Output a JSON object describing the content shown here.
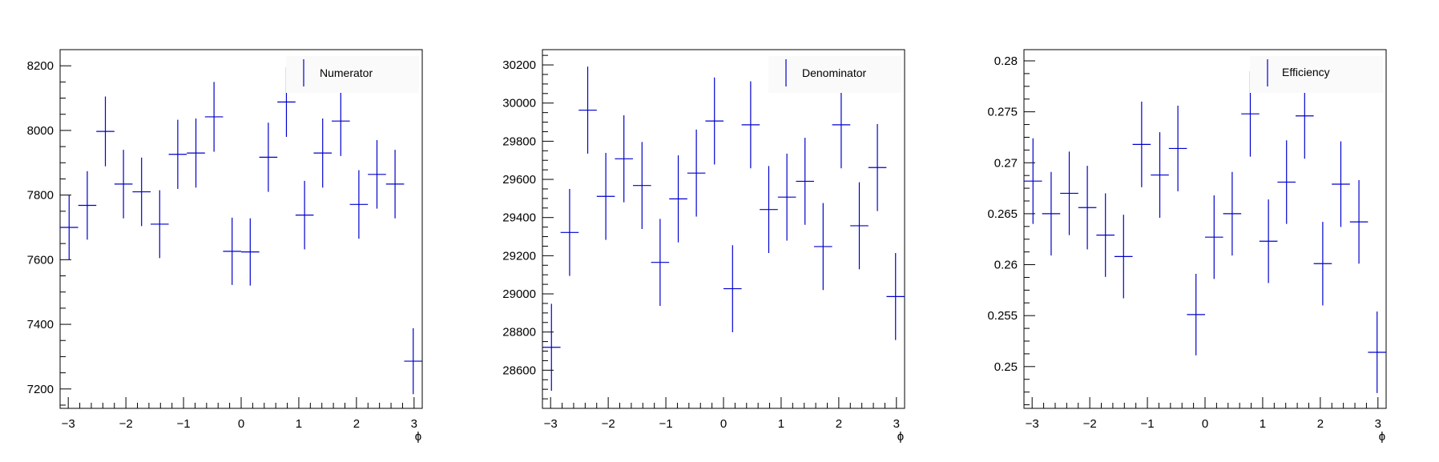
{
  "style": {
    "marker_color": "#0000cc",
    "axis_color": "#000000",
    "legend_bg": "#fafafa"
  },
  "chart_data": [
    {
      "type": "scatter",
      "title": "",
      "xlabel": "ϕ",
      "ylabel": "",
      "legend": "Numerator",
      "legend_position": "top-right",
      "grid": false,
      "xlim": [
        -3.1416,
        3.1416
      ],
      "ylim": [
        7140,
        8250
      ],
      "xticks": [
        -3,
        -2,
        -1,
        0,
        1,
        2,
        3
      ],
      "xtick_labels": [
        "−3",
        "−2",
        "−1",
        "0",
        "1",
        "2",
        "3"
      ],
      "yticks": [
        7200,
        7400,
        7600,
        7800,
        8000,
        8200
      ],
      "ytick_labels": [
        "7200",
        "7400",
        "7600",
        "7800",
        "8000",
        "8200"
      ],
      "bin_half_width": 0.157,
      "points": [
        {
          "x": -2.985,
          "y": 7700,
          "err": 100
        },
        {
          "x": -2.67,
          "y": 7768,
          "err": 106
        },
        {
          "x": -2.356,
          "y": 7997,
          "err": 108
        },
        {
          "x": -2.042,
          "y": 7834,
          "err": 106
        },
        {
          "x": -1.728,
          "y": 7810,
          "err": 106
        },
        {
          "x": -1.414,
          "y": 7710,
          "err": 105
        },
        {
          "x": -1.1,
          "y": 7926,
          "err": 107
        },
        {
          "x": -0.785,
          "y": 7930,
          "err": 107
        },
        {
          "x": -0.471,
          "y": 8042,
          "err": 108
        },
        {
          "x": -0.157,
          "y": 7626,
          "err": 104
        },
        {
          "x": 0.157,
          "y": 7624,
          "err": 104
        },
        {
          "x": 0.471,
          "y": 7917,
          "err": 107
        },
        {
          "x": 0.785,
          "y": 8088,
          "err": 108
        },
        {
          "x": 1.1,
          "y": 7738,
          "err": 106
        },
        {
          "x": 1.414,
          "y": 7930,
          "err": 107
        },
        {
          "x": 1.728,
          "y": 8029,
          "err": 108
        },
        {
          "x": 2.042,
          "y": 7771,
          "err": 106
        },
        {
          "x": 2.356,
          "y": 7864,
          "err": 106
        },
        {
          "x": 2.67,
          "y": 7834,
          "err": 106
        },
        {
          "x": 2.985,
          "y": 7286,
          "err": 102
        }
      ]
    },
    {
      "type": "scatter",
      "title": "",
      "xlabel": "ϕ",
      "ylabel": "",
      "legend": "Denominator",
      "legend_position": "top-right",
      "grid": false,
      "xlim": [
        -3.1416,
        3.1416
      ],
      "ylim": [
        28400,
        30280
      ],
      "xticks": [
        -3,
        -2,
        -1,
        0,
        1,
        2,
        3
      ],
      "xtick_labels": [
        "−3",
        "−2",
        "−1",
        "0",
        "1",
        "2",
        "3"
      ],
      "yticks": [
        28600,
        28800,
        29000,
        29200,
        29400,
        29600,
        29800,
        30000,
        30200
      ],
      "ytick_labels": [
        "28600",
        "28800",
        "29000",
        "29200",
        "29400",
        "29600",
        "29800",
        "30000",
        "30200"
      ],
      "bin_half_width": 0.157,
      "points": [
        {
          "x": -2.985,
          "y": 28720,
          "err": 228
        },
        {
          "x": -2.67,
          "y": 29322,
          "err": 228
        },
        {
          "x": -2.356,
          "y": 29963,
          "err": 228
        },
        {
          "x": -2.042,
          "y": 29511,
          "err": 228
        },
        {
          "x": -1.728,
          "y": 29708,
          "err": 228
        },
        {
          "x": -1.414,
          "y": 29568,
          "err": 228
        },
        {
          "x": -1.1,
          "y": 29165,
          "err": 228
        },
        {
          "x": -0.785,
          "y": 29498,
          "err": 228
        },
        {
          "x": -0.471,
          "y": 29633,
          "err": 228
        },
        {
          "x": -0.157,
          "y": 29906,
          "err": 228
        },
        {
          "x": 0.157,
          "y": 29027,
          "err": 228
        },
        {
          "x": 0.471,
          "y": 29886,
          "err": 228
        },
        {
          "x": 0.785,
          "y": 29442,
          "err": 228
        },
        {
          "x": 1.1,
          "y": 29507,
          "err": 228
        },
        {
          "x": 1.414,
          "y": 29590,
          "err": 228
        },
        {
          "x": 1.728,
          "y": 29248,
          "err": 228
        },
        {
          "x": 2.042,
          "y": 29886,
          "err": 228
        },
        {
          "x": 2.356,
          "y": 29357,
          "err": 228
        },
        {
          "x": 2.67,
          "y": 29662,
          "err": 228
        },
        {
          "x": 2.985,
          "y": 28986,
          "err": 228
        }
      ]
    },
    {
      "type": "scatter",
      "title": "",
      "xlabel": "ϕ",
      "ylabel": "",
      "legend": "Efficiency",
      "legend_position": "top-right",
      "grid": false,
      "xlim": [
        -3.1416,
        3.1416
      ],
      "ylim": [
        0.2459,
        0.2811
      ],
      "xticks": [
        -3,
        -2,
        -1,
        0,
        1,
        2,
        3
      ],
      "xtick_labels": [
        "−3",
        "−2",
        "−1",
        "0",
        "1",
        "2",
        "3"
      ],
      "yticks": [
        0.25,
        0.255,
        0.26,
        0.265,
        0.27,
        0.275,
        0.28
      ],
      "ytick_labels": [
        "0.25",
        "0.255",
        "0.26",
        "0.265",
        "0.27",
        "0.275",
        "0.28"
      ],
      "bin_half_width": 0.157,
      "points": [
        {
          "x": -2.985,
          "y": 0.2682,
          "err": 0.0042
        },
        {
          "x": -2.67,
          "y": 0.265,
          "err": 0.0041
        },
        {
          "x": -2.356,
          "y": 0.267,
          "err": 0.0041
        },
        {
          "x": -2.042,
          "y": 0.2656,
          "err": 0.0041
        },
        {
          "x": -1.728,
          "y": 0.2629,
          "err": 0.0041
        },
        {
          "x": -1.414,
          "y": 0.2608,
          "err": 0.0041
        },
        {
          "x": -1.1,
          "y": 0.2718,
          "err": 0.0042
        },
        {
          "x": -0.785,
          "y": 0.2688,
          "err": 0.0042
        },
        {
          "x": -0.471,
          "y": 0.2714,
          "err": 0.0042
        },
        {
          "x": -0.157,
          "y": 0.2551,
          "err": 0.004
        },
        {
          "x": 0.157,
          "y": 0.2627,
          "err": 0.0041
        },
        {
          "x": 0.471,
          "y": 0.265,
          "err": 0.0041
        },
        {
          "x": 0.785,
          "y": 0.2748,
          "err": 0.0042
        },
        {
          "x": 1.1,
          "y": 0.2623,
          "err": 0.0041
        },
        {
          "x": 1.414,
          "y": 0.2681,
          "err": 0.0041
        },
        {
          "x": 1.728,
          "y": 0.2746,
          "err": 0.0042
        },
        {
          "x": 2.042,
          "y": 0.2601,
          "err": 0.0041
        },
        {
          "x": 2.356,
          "y": 0.2679,
          "err": 0.0042
        },
        {
          "x": 2.67,
          "y": 0.2642,
          "err": 0.0041
        },
        {
          "x": 2.985,
          "y": 0.2514,
          "err": 0.004
        }
      ]
    }
  ]
}
